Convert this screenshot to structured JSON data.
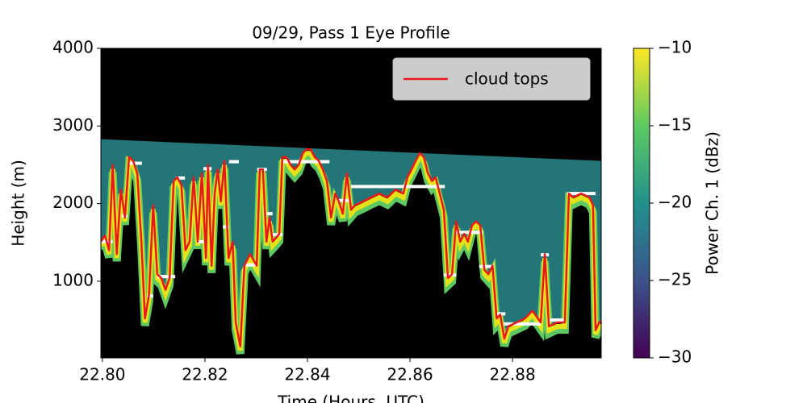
{
  "chart_data": {
    "type": "line",
    "title": "09/29, Pass 1 Eye Profile",
    "xlabel": "Time (Hours, UTC)",
    "ylabel": "Height (m)",
    "xlim": [
      22.7997,
      22.8973
    ],
    "ylim": [
      13,
      4000
    ],
    "xticks": [
      {
        "value": 22.8,
        "label": "22.80"
      },
      {
        "value": 22.82,
        "label": "22.82"
      },
      {
        "value": 22.84,
        "label": "22.84"
      },
      {
        "value": 22.86,
        "label": "22.86"
      },
      {
        "value": 22.88,
        "label": "22.88"
      }
    ],
    "yticks": [
      1000,
      2000,
      3000,
      4000
    ],
    "legend": "upper right",
    "series": [
      {
        "name": "cloud tops",
        "color": "#e8191a",
        "x": [
          22.7997,
          22.8005,
          22.8013,
          22.802,
          22.8028,
          22.8036,
          22.8044,
          22.8052,
          22.806,
          22.8068,
          22.8076,
          22.8083,
          22.8091,
          22.8099,
          22.8107,
          22.8115,
          22.8123,
          22.8131,
          22.8139,
          22.8146,
          22.8154,
          22.8162,
          22.817,
          22.8178,
          22.8186,
          22.8194,
          22.8202,
          22.8206,
          22.8213,
          22.8219,
          22.8225,
          22.8231,
          22.8238,
          22.8246,
          22.8254,
          22.826,
          22.8269,
          22.8277,
          22.8288,
          22.8301,
          22.8307,
          22.8313,
          22.832,
          22.8326,
          22.8332,
          22.8339,
          22.8345,
          22.8351,
          22.8359,
          22.8367,
          22.8375,
          22.8383,
          22.8391,
          22.8398,
          22.8406,
          22.8414,
          22.8422,
          22.843,
          22.8438,
          22.8446,
          22.8454,
          22.8461,
          22.8469,
          22.8477,
          22.8485,
          22.8493,
          22.8509,
          22.8524,
          22.854,
          22.8556,
          22.8572,
          22.8587,
          22.8595,
          22.8603,
          22.8611,
          22.8619,
          22.8627,
          22.8635,
          22.8643,
          22.865,
          22.8658,
          22.8666,
          22.8674,
          22.8682,
          22.869,
          22.8698,
          22.8706,
          22.8713,
          22.8721,
          22.8729,
          22.8737,
          22.8745,
          22.8753,
          22.8761,
          22.8769,
          22.8776,
          22.8784,
          22.8792,
          22.8808,
          22.8824,
          22.8839,
          22.8855,
          22.8863,
          22.8871,
          22.8887,
          22.8902,
          22.891,
          22.8918,
          22.8934,
          22.895,
          22.8957,
          22.8962,
          22.8969,
          22.8973
        ],
        "values": [
          1510,
          1590,
          1400,
          2500,
          1350,
          2180,
          1820,
          2600,
          2550,
          2390,
          1510,
          520,
          830,
          1980,
          1090,
          1040,
          890,
          1040,
          2290,
          2340,
          2240,
          1400,
          1510,
          2340,
          1510,
          2390,
          1300,
          2500,
          1200,
          2130,
          2440,
          2030,
          2550,
          1300,
          1510,
          470,
          160,
          1200,
          1350,
          1200,
          2440,
          2440,
          1510,
          1820,
          1510,
          1560,
          1610,
          2600,
          2600,
          2500,
          2440,
          2500,
          2650,
          2700,
          2700,
          2600,
          2550,
          2440,
          2290,
          1820,
          2130,
          2030,
          1870,
          2390,
          1920,
          1980,
          2030,
          2080,
          2130,
          2080,
          2180,
          2130,
          2340,
          2440,
          2550,
          2650,
          2600,
          2390,
          2290,
          2340,
          2130,
          1920,
          1040,
          1090,
          1770,
          1510,
          1610,
          1510,
          1720,
          1770,
          1720,
          1150,
          1090,
          1200,
          520,
          570,
          260,
          420,
          470,
          520,
          620,
          470,
          1350,
          420,
          470,
          470,
          2130,
          2080,
          2130,
          2080,
          1980,
          370,
          470,
          490
        ]
      }
    ],
    "levels": {
      "color": "#ffffff",
      "x0": [
        22.7997,
        22.8038,
        22.8052,
        22.8087,
        22.8107,
        22.8143,
        22.8186,
        22.8197,
        22.8235,
        22.8247,
        22.8277,
        22.8302,
        22.832,
        22.8331,
        22.8351,
        22.8458,
        22.8485,
        22.8666,
        22.8687,
        22.8735,
        22.877,
        22.8783,
        22.8855,
        22.8868,
        22.8907
      ],
      "x1": [
        22.802,
        22.8049,
        22.8077,
        22.8099,
        22.8142,
        22.8161,
        22.8198,
        22.8213,
        22.8247,
        22.8266,
        22.8302,
        22.8321,
        22.8332,
        22.8351,
        22.8443,
        22.8485,
        22.8668,
        22.869,
        22.8742,
        22.8764,
        22.8786,
        22.8855,
        22.8871,
        22.8902,
        22.8962
      ],
      "values": [
        1510,
        1840,
        2520,
        810,
        1060,
        2330,
        1510,
        2450,
        1700,
        2540,
        1210,
        2440,
        1870,
        1600,
        2540,
        2040,
        2220,
        1080,
        1630,
        1190,
        580,
        450,
        1340,
        500,
        2130
      ]
    },
    "signal_top": {
      "x": [
        22.7997,
        22.8973
      ],
      "values": [
        2830,
        2550
      ]
    },
    "colorbar": {
      "label": "Power Ch. 1 (dBz)",
      "clim": [
        -30,
        -10
      ],
      "ticks": [
        {
          "value": -10,
          "label": "−10"
        },
        {
          "value": -15,
          "label": "−15"
        },
        {
          "value": -20,
          "label": "−20"
        },
        {
          "value": -25,
          "label": "−25"
        },
        {
          "value": -30,
          "label": "−30"
        }
      ],
      "colors": [
        "#440154",
        "#3b528b",
        "#21918c",
        "#5ec962",
        "#fde725"
      ]
    }
  }
}
